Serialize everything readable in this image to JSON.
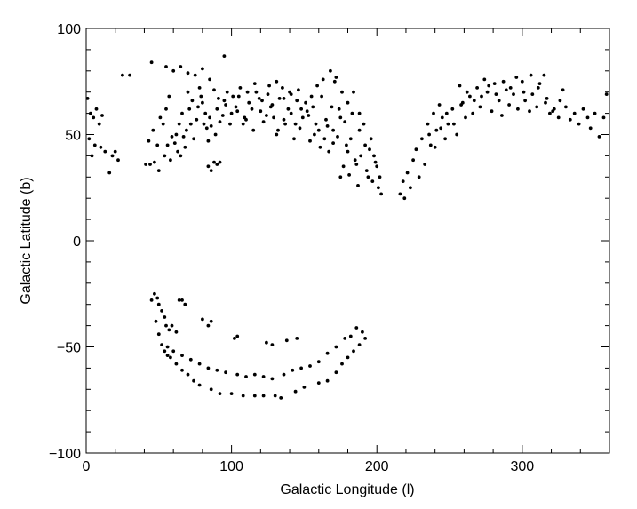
{
  "chart_data": {
    "type": "scatter",
    "title": "",
    "xlabel": "Galactic Longitude (l)",
    "ylabel": "Galactic Latitude (b)",
    "xlim": [
      0,
      360
    ],
    "ylim": [
      -100,
      100
    ],
    "x_ticks": [
      0,
      100,
      200,
      300
    ],
    "y_ticks": [
      -100,
      -50,
      0,
      50,
      100
    ],
    "y_tick_labels": [
      "−100",
      "−50",
      "0",
      "50",
      "100"
    ],
    "grid": false,
    "legend": "none",
    "marker_color": "#000000",
    "series": [
      {
        "points": [
          [
            1,
            67
          ],
          [
            3,
            60
          ],
          [
            5,
            58
          ],
          [
            7,
            62
          ],
          [
            9,
            55
          ],
          [
            11,
            59
          ],
          [
            2,
            48
          ],
          [
            6,
            45
          ],
          [
            4,
            40
          ],
          [
            10,
            44
          ],
          [
            13,
            42
          ],
          [
            16,
            32
          ],
          [
            18,
            40
          ],
          [
            20,
            42
          ],
          [
            22,
            38
          ],
          [
            25,
            78
          ],
          [
            30,
            78
          ],
          [
            45,
            84
          ],
          [
            55,
            82
          ],
          [
            60,
            80
          ],
          [
            65,
            82
          ],
          [
            70,
            79
          ],
          [
            80,
            81
          ],
          [
            95,
            87
          ],
          [
            85,
            76
          ],
          [
            75,
            78
          ],
          [
            43,
            47
          ],
          [
            46,
            52
          ],
          [
            49,
            45
          ],
          [
            51,
            58
          ],
          [
            53,
            55
          ],
          [
            55,
            62
          ],
          [
            57,
            68
          ],
          [
            59,
            49
          ],
          [
            62,
            50
          ],
          [
            64,
            55
          ],
          [
            66,
            60
          ],
          [
            68,
            44
          ],
          [
            70,
            70
          ],
          [
            72,
            55
          ],
          [
            74,
            48
          ],
          [
            77,
            63
          ],
          [
            79,
            68
          ],
          [
            81,
            55
          ],
          [
            83,
            53
          ],
          [
            85,
            58
          ],
          [
            88,
            71
          ],
          [
            90,
            62
          ],
          [
            92,
            56
          ],
          [
            95,
            66
          ],
          [
            97,
            70
          ],
          [
            100,
            60
          ],
          [
            103,
            63
          ],
          [
            105,
            68
          ],
          [
            108,
            55
          ],
          [
            110,
            57
          ],
          [
            112,
            65
          ],
          [
            115,
            52
          ],
          [
            117,
            70
          ],
          [
            120,
            61
          ],
          [
            122,
            56
          ],
          [
            125,
            69
          ],
          [
            127,
            63
          ],
          [
            129,
            58
          ],
          [
            131,
            50
          ],
          [
            133,
            67
          ],
          [
            135,
            72
          ],
          [
            137,
            55
          ],
          [
            139,
            62
          ],
          [
            141,
            60
          ],
          [
            143,
            48
          ],
          [
            145,
            66
          ],
          [
            147,
            53
          ],
          [
            149,
            58
          ],
          [
            152,
            61
          ],
          [
            154,
            47
          ],
          [
            156,
            63
          ],
          [
            158,
            55
          ],
          [
            160,
            52
          ],
          [
            162,
            68
          ],
          [
            165,
            57
          ],
          [
            167,
            42
          ],
          [
            169,
            63
          ],
          [
            171,
            75
          ],
          [
            173,
            49
          ],
          [
            175,
            58
          ],
          [
            177,
            35
          ],
          [
            179,
            45
          ],
          [
            181,
            31
          ],
          [
            183,
            60
          ],
          [
            185,
            38
          ],
          [
            187,
            26
          ],
          [
            189,
            40
          ],
          [
            191,
            55
          ],
          [
            193,
            33
          ],
          [
            195,
            43
          ],
          [
            197,
            28
          ],
          [
            199,
            37
          ],
          [
            201,
            25
          ],
          [
            203,
            22
          ],
          [
            200,
            35
          ],
          [
            196,
            48
          ],
          [
            188,
            52
          ],
          [
            180,
            42
          ],
          [
            175,
            30
          ],
          [
            170,
            46
          ],
          [
            166,
            54
          ],
          [
            161,
            44
          ],
          [
            157,
            50
          ],
          [
            153,
            59
          ],
          [
            148,
            62
          ],
          [
            144,
            55
          ],
          [
            140,
            70
          ],
          [
            136,
            57
          ],
          [
            132,
            52
          ],
          [
            128,
            64
          ],
          [
            124,
            59
          ],
          [
            119,
            67
          ],
          [
            114,
            62
          ],
          [
            109,
            58
          ],
          [
            104,
            61
          ],
          [
            99,
            55
          ],
          [
            94,
            59
          ],
          [
            89,
            50
          ],
          [
            84,
            47
          ],
          [
            80,
            65
          ],
          [
            76,
            57
          ],
          [
            71,
            62
          ],
          [
            67,
            49
          ],
          [
            63,
            42
          ],
          [
            58,
            38
          ],
          [
            54,
            40
          ],
          [
            50,
            33
          ],
          [
            47,
            37
          ],
          [
            44,
            36
          ],
          [
            41,
            36
          ],
          [
            56,
            45
          ],
          [
            61,
            46
          ],
          [
            65,
            40
          ],
          [
            69,
            52
          ],
          [
            73,
            66
          ],
          [
            78,
            72
          ],
          [
            82,
            60
          ],
          [
            86,
            54
          ],
          [
            91,
            67
          ],
          [
            96,
            64
          ],
          [
            101,
            68
          ],
          [
            106,
            72
          ],
          [
            111,
            70
          ],
          [
            116,
            74
          ],
          [
            121,
            66
          ],
          [
            126,
            73
          ],
          [
            131,
            75
          ],
          [
            136,
            67
          ],
          [
            141,
            69
          ],
          [
            146,
            71
          ],
          [
            151,
            65
          ],
          [
            155,
            68
          ],
          [
            159,
            73
          ],
          [
            163,
            76
          ],
          [
            168,
            80
          ],
          [
            172,
            77
          ],
          [
            176,
            70
          ],
          [
            180,
            65
          ],
          [
            184,
            70
          ],
          [
            188,
            60
          ],
          [
            192,
            45
          ],
          [
            194,
            30
          ],
          [
            198,
            40
          ],
          [
            202,
            30
          ],
          [
            186,
            36
          ],
          [
            182,
            48
          ],
          [
            178,
            56
          ],
          [
            174,
            62
          ],
          [
            170,
            52
          ],
          [
            164,
            48
          ],
          [
            84,
            35
          ],
          [
            86,
            33
          ],
          [
            88,
            37
          ],
          [
            92,
            37
          ],
          [
            90,
            36
          ],
          [
            216,
            22
          ],
          [
            218,
            28
          ],
          [
            219,
            20
          ],
          [
            221,
            32
          ],
          [
            223,
            25
          ],
          [
            225,
            38
          ],
          [
            227,
            43
          ],
          [
            229,
            30
          ],
          [
            231,
            48
          ],
          [
            233,
            36
          ],
          [
            235,
            55
          ],
          [
            237,
            45
          ],
          [
            239,
            60
          ],
          [
            241,
            52
          ],
          [
            243,
            64
          ],
          [
            245,
            58
          ],
          [
            247,
            48
          ],
          [
            249,
            55
          ],
          [
            252,
            62
          ],
          [
            255,
            50
          ],
          [
            257,
            73
          ],
          [
            259,
            65
          ],
          [
            261,
            58
          ],
          [
            264,
            68
          ],
          [
            266,
            60
          ],
          [
            269,
            72
          ],
          [
            271,
            63
          ],
          [
            274,
            76
          ],
          [
            276,
            70
          ],
          [
            279,
            61
          ],
          [
            281,
            74
          ],
          [
            284,
            66
          ],
          [
            286,
            59
          ],
          [
            289,
            71
          ],
          [
            291,
            64
          ],
          [
            294,
            69
          ],
          [
            297,
            62
          ],
          [
            300,
            75
          ],
          [
            302,
            66
          ],
          [
            305,
            61
          ],
          [
            307,
            69
          ],
          [
            310,
            63
          ],
          [
            312,
            74
          ],
          [
            315,
            78
          ],
          [
            317,
            67
          ],
          [
            319,
            60
          ],
          [
            322,
            62
          ],
          [
            325,
            58
          ],
          [
            328,
            71
          ],
          [
            330,
            63
          ],
          [
            333,
            57
          ],
          [
            336,
            60
          ],
          [
            339,
            55
          ],
          [
            342,
            62
          ],
          [
            345,
            58
          ],
          [
            347,
            53
          ],
          [
            350,
            60
          ],
          [
            353,
            49
          ],
          [
            356,
            58
          ],
          [
            358,
            69
          ],
          [
            236,
            50
          ],
          [
            240,
            44
          ],
          [
            244,
            53
          ],
          [
            248,
            60
          ],
          [
            253,
            55
          ],
          [
            258,
            64
          ],
          [
            262,
            70
          ],
          [
            267,
            66
          ],
          [
            272,
            68
          ],
          [
            277,
            73
          ],
          [
            282,
            69
          ],
          [
            287,
            75
          ],
          [
            292,
            72
          ],
          [
            296,
            77
          ],
          [
            301,
            70
          ],
          [
            306,
            78
          ],
          [
            311,
            72
          ],
          [
            316,
            65
          ],
          [
            321,
            61
          ],
          [
            326,
            66
          ],
          [
            45,
            -28
          ],
          [
            47,
            -25
          ],
          [
            49,
            -27
          ],
          [
            50,
            -30
          ],
          [
            52,
            -33
          ],
          [
            54,
            -36
          ],
          [
            55,
            -40
          ],
          [
            57,
            -42
          ],
          [
            59,
            -40
          ],
          [
            62,
            -43
          ],
          [
            64,
            -28
          ],
          [
            66,
            -28
          ],
          [
            68,
            -30
          ],
          [
            80,
            -37
          ],
          [
            84,
            -40
          ],
          [
            86,
            -38
          ],
          [
            48,
            -38
          ],
          [
            50,
            -44
          ],
          [
            52,
            -49
          ],
          [
            54,
            -52
          ],
          [
            56,
            -54
          ],
          [
            58,
            -55
          ],
          [
            62,
            -58
          ],
          [
            66,
            -61
          ],
          [
            70,
            -63
          ],
          [
            74,
            -66
          ],
          [
            78,
            -68
          ],
          [
            86,
            -70
          ],
          [
            92,
            -72
          ],
          [
            100,
            -72
          ],
          [
            108,
            -73
          ],
          [
            116,
            -73
          ],
          [
            122,
            -73
          ],
          [
            130,
            -73
          ],
          [
            134,
            -74
          ],
          [
            144,
            -71
          ],
          [
            150,
            -69
          ],
          [
            160,
            -67
          ],
          [
            166,
            -66
          ],
          [
            172,
            -62
          ],
          [
            176,
            -58
          ],
          [
            180,
            -55
          ],
          [
            184,
            -52
          ],
          [
            188,
            -49
          ],
          [
            192,
            -46
          ],
          [
            190,
            -43
          ],
          [
            186,
            -41
          ],
          [
            182,
            -45
          ],
          [
            56,
            -50
          ],
          [
            60,
            -52
          ],
          [
            66,
            -54
          ],
          [
            72,
            -56
          ],
          [
            78,
            -58
          ],
          [
            84,
            -60
          ],
          [
            90,
            -61
          ],
          [
            96,
            -62
          ],
          [
            104,
            -63
          ],
          [
            110,
            -64
          ],
          [
            116,
            -63
          ],
          [
            122,
            -64
          ],
          [
            128,
            -65
          ],
          [
            136,
            -63
          ],
          [
            142,
            -61
          ],
          [
            148,
            -60
          ],
          [
            154,
            -59
          ],
          [
            160,
            -57
          ],
          [
            166,
            -53
          ],
          [
            172,
            -50
          ],
          [
            178,
            -46
          ],
          [
            102,
            -46
          ],
          [
            104,
            -45
          ],
          [
            124,
            -48
          ],
          [
            128,
            -49
          ],
          [
            138,
            -47
          ],
          [
            145,
            -46
          ]
        ]
      }
    ]
  }
}
